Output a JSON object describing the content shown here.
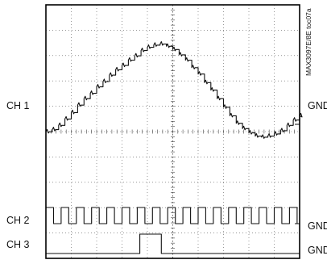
{
  "chart_data": {
    "type": "line",
    "figure_id": "MAX3097E/8E toc07a",
    "grid": true,
    "channels": [
      {
        "name": "CH 1",
        "ground_label": "GND",
        "waveform": "staircase sine",
        "x": [
          0,
          0.25,
          0.5,
          0.75,
          1,
          1.25,
          1.5,
          1.75,
          2,
          2.25,
          2.5,
          2.75,
          3,
          3.25,
          3.5,
          3.75,
          4,
          4.25,
          4.5,
          4.75,
          5,
          5.25,
          5.5,
          5.75,
          6,
          6.25,
          6.5,
          6.75,
          7,
          7.25,
          7.5,
          7.75,
          8,
          8.25,
          8.5,
          8.75,
          9,
          9.25,
          9.5,
          9.75,
          10
        ],
        "y": [
          -0.35,
          -0.25,
          -0.05,
          0.25,
          0.55,
          0.9,
          1.2,
          1.45,
          1.75,
          2.0,
          2.3,
          2.55,
          2.75,
          3.0,
          3.2,
          3.45,
          3.6,
          3.7,
          3.75,
          3.65,
          3.5,
          3.25,
          3.0,
          2.65,
          2.35,
          1.95,
          1.6,
          1.2,
          0.8,
          0.4,
          0.05,
          -0.2,
          -0.4,
          -0.55,
          -0.6,
          -0.55,
          -0.45,
          -0.3,
          -0.05,
          0.2,
          0.4
        ]
      },
      {
        "name": "CH 2",
        "ground_label": "GND",
        "waveform": "square clock",
        "x": [
          0,
          0.3,
          0.6,
          0.9,
          1.2,
          1.5,
          1.8,
          2.1,
          2.4,
          2.7,
          3.0,
          3.3,
          3.6,
          3.9,
          4.2,
          4.5,
          4.8,
          5.1,
          5.4,
          5.7,
          6.0,
          6.3,
          6.6,
          6.9,
          7.2,
          7.5,
          7.8,
          8.1,
          8.4,
          8.7,
          9.0,
          9.3,
          9.6,
          9.9
        ],
        "y": [
          1,
          0,
          1,
          0,
          1,
          0,
          1,
          0,
          1,
          0,
          1,
          0,
          1,
          0,
          1,
          0,
          1,
          0,
          1,
          0,
          1,
          0,
          1,
          0,
          1,
          0,
          1,
          0,
          1,
          0,
          1,
          0,
          1,
          0
        ]
      },
      {
        "name": "CH 3",
        "ground_label": "GND",
        "waveform": "single pulse",
        "x": [
          0,
          3.7,
          3.7,
          4.05,
          4.05,
          4.55,
          4.55,
          10
        ],
        "y": [
          0,
          0,
          1,
          1,
          1,
          1,
          0,
          0
        ]
      }
    ],
    "xlim": [
      0,
      10
    ],
    "ylim": [
      -4,
      4
    ]
  }
}
